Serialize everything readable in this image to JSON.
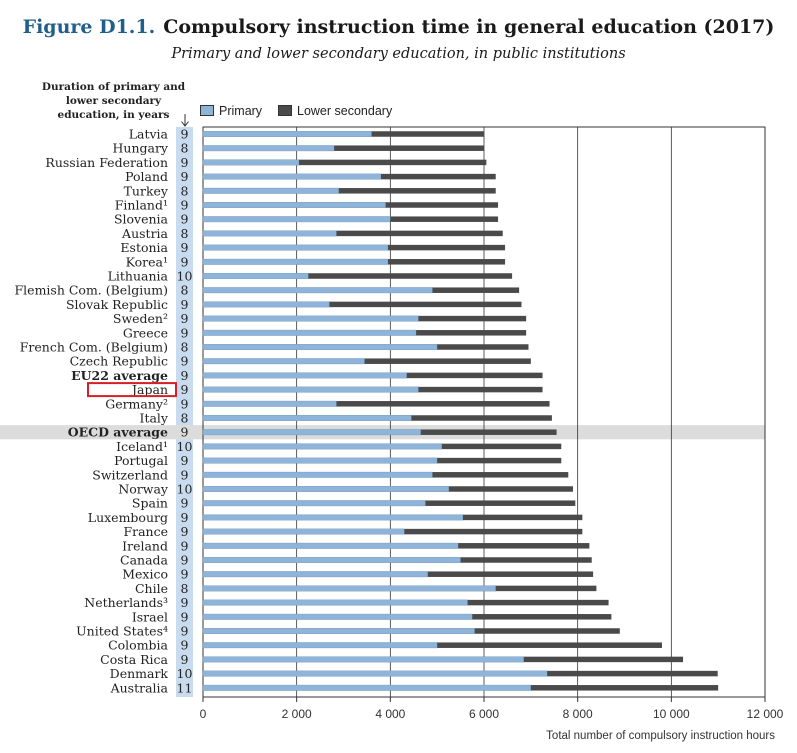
{
  "header": {
    "figure_number": "Figure D1.1.",
    "title": "Compulsory instruction time in general education (2017)",
    "subtitle": "Primary and lower secondary education, in public institutions"
  },
  "duration_label": "Duration of primary and lower secondary education, in years",
  "x_axis_title": "Total number of compulsory instruction hours",
  "colors": {
    "primary": "#8fb4d9",
    "lower_secondary": "#4a4a4a",
    "duration_column": "#c9dcef",
    "highlight_row": "#dcdcdc",
    "highlight_box": "#d61f26"
  },
  "chart_data": {
    "type": "bar",
    "orientation": "horizontal",
    "stacked": true,
    "title": "Compulsory instruction time in general education (2017)",
    "subtitle": "Primary and lower secondary education, in public institutions",
    "xlabel": "Total number of compulsory instruction hours",
    "xlim": [
      0,
      12000
    ],
    "xticks": [
      0,
      2000,
      4000,
      6000,
      8000,
      10000,
      12000
    ],
    "xtick_labels": [
      "0",
      "2 000",
      "4 000",
      "6 000",
      "8 000",
      "10 000",
      "12 000"
    ],
    "grid": true,
    "legend": [
      "Primary",
      "Lower secondary"
    ],
    "legend_position": "top",
    "categories": [
      "Latvia",
      "Hungary",
      "Russian Federation",
      "Poland",
      "Turkey",
      "Finland¹",
      "Slovenia",
      "Austria",
      "Estonia",
      "Korea¹",
      "Lithuania",
      "Flemish Com. (Belgium)",
      "Slovak Republic",
      "Sweden²",
      "Greece",
      "French Com. (Belgium)",
      "Czech Republic",
      "EU22 average",
      "Japan",
      "Germany²",
      "Italy",
      "OECD average",
      "Iceland¹",
      "Portugal",
      "Switzerland",
      "Norway",
      "Spain",
      "Luxembourg",
      "France",
      "Ireland",
      "Canada",
      "Mexico",
      "Chile",
      "Netherlands³",
      "Israel",
      "United States⁴",
      "Colombia",
      "Costa Rica",
      "Denmark",
      "Australia"
    ],
    "durations": [
      "9",
      "8",
      "9",
      "9",
      "8",
      "9",
      "9",
      "8",
      "9",
      "9",
      "10",
      "8",
      "9",
      "9",
      "9",
      "8",
      "9",
      "9",
      "9",
      "9",
      "8",
      "9",
      "10",
      "9",
      "9",
      "10",
      "9",
      "9",
      "9",
      "9",
      "9",
      "9",
      "8",
      "9",
      "9",
      "9",
      "9",
      "9",
      "10",
      "11"
    ],
    "bold_categories": [
      "EU22 average",
      "OECD average"
    ],
    "highlighted_category": "Japan",
    "shaded_category": "OECD average",
    "series": [
      {
        "name": "Primary",
        "values": [
          3600,
          2800,
          2050,
          3800,
          2900,
          3900,
          4000,
          2850,
          3950,
          3950,
          2250,
          4900,
          2700,
          4600,
          4550,
          5000,
          3450,
          4350,
          4600,
          2850,
          4450,
          4650,
          5100,
          5000,
          4900,
          5250,
          4750,
          5550,
          4300,
          5450,
          5500,
          4800,
          6250,
          5650,
          5750,
          5800,
          5000,
          6850,
          7350,
          7000
        ]
      },
      {
        "name": "Lower secondary",
        "values": [
          2400,
          3200,
          4000,
          2450,
          3350,
          2400,
          2300,
          3550,
          2500,
          2500,
          4350,
          1850,
          4100,
          2300,
          2350,
          1950,
          3550,
          2900,
          2650,
          4550,
          3000,
          2900,
          2550,
          2650,
          2900,
          2650,
          3200,
          2550,
          3800,
          2800,
          2800,
          3530,
          2150,
          3010,
          2970,
          3100,
          4800,
          3400,
          3640,
          4000
        ]
      }
    ]
  }
}
